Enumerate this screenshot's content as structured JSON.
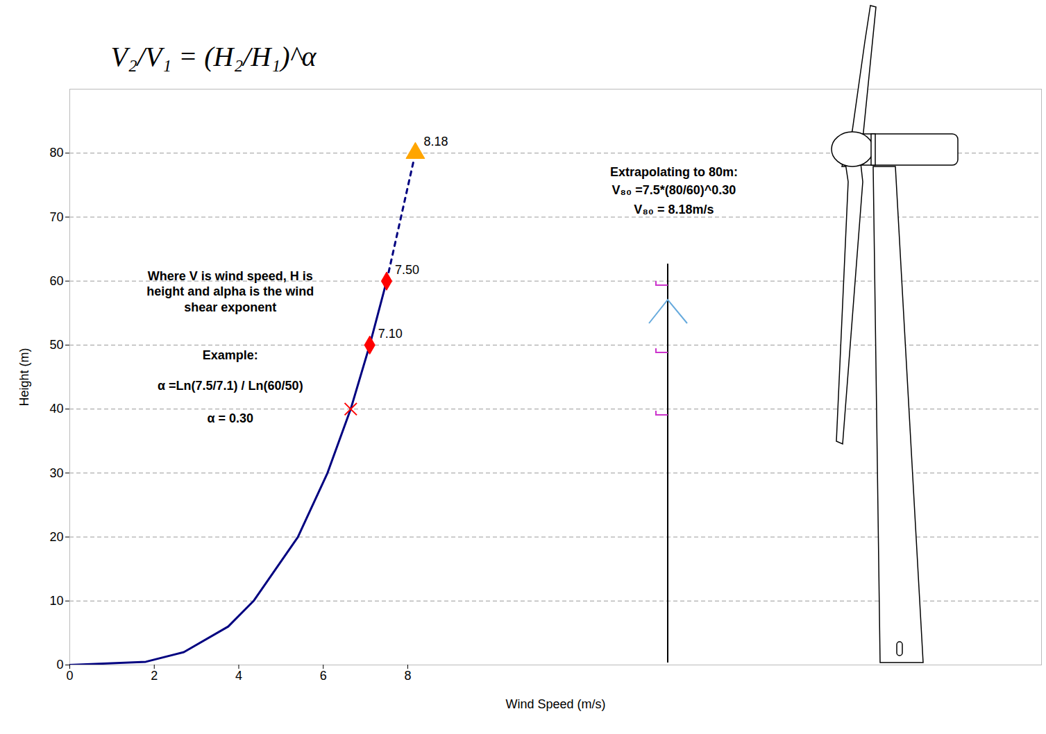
{
  "chart_data": {
    "type": "line",
    "formula": "V₂/V₁ = (H₂/H₁)^α",
    "xlabel": "Wind Speed (m/s)",
    "ylabel": "Height (m)",
    "xlim": [
      0,
      23
    ],
    "xticks": [
      0,
      2,
      4,
      6,
      8
    ],
    "ylim": [
      0,
      90
    ],
    "yticks": [
      0,
      10,
      20,
      30,
      40,
      50,
      60,
      70,
      80
    ],
    "grid": true,
    "series": [
      {
        "x": [
          0,
          1.8,
          2.7,
          3.75,
          4.35,
          5.4,
          6.1,
          6.65,
          7.1,
          7.5
        ],
        "values": [
          0,
          0.5,
          2,
          6,
          10,
          20,
          30,
          40,
          50,
          60
        ],
        "color": "#000080",
        "line_style": "solid"
      },
      {
        "x": [
          7.5,
          8.18
        ],
        "values": [
          60,
          80
        ],
        "color": "#000080",
        "line_style": "dashed"
      }
    ],
    "points": [
      {
        "x": 6.65,
        "y": 40,
        "marker": "x",
        "color": "#ff0000"
      },
      {
        "x": 7.1,
        "y": 50,
        "marker": "diamond",
        "color": "#ff0000",
        "label": "7.10"
      },
      {
        "x": 7.5,
        "y": 60,
        "marker": "diamond",
        "color": "#ff0000",
        "label": "7.50"
      },
      {
        "x": 8.18,
        "y": 80,
        "marker": "triangle",
        "color": "#ffa500",
        "label": "8.18"
      }
    ],
    "annotations": [
      "Where V is wind speed, H is height and alpha is the wind shear exponent",
      "Example:",
      "α =Ln(7.5/7.1) / Ln(60/50)",
      "α = 0.30",
      "Extrapolating to 80m:",
      "V₈₀ =7.5*(80/60)^0.30",
      "V₈₀ = 8.18m/s"
    ]
  }
}
